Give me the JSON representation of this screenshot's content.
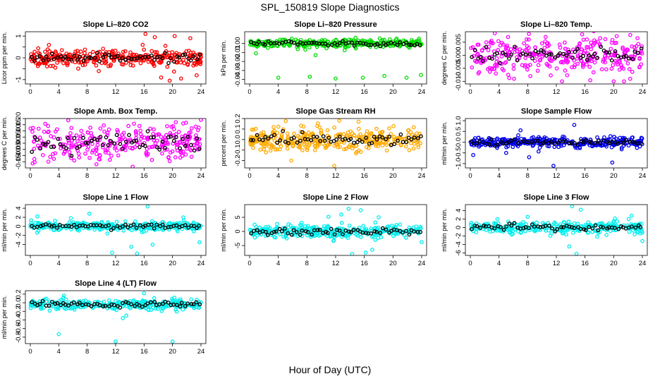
{
  "figure": {
    "title": "SPL_150819  Slope Diagnostics",
    "xlabel": "Hour of Day (UTC)"
  },
  "chart_data": [
    {
      "type": "scatter",
      "title": "Slope Li–820 CO2",
      "ylabel": "Licor ppm per min.",
      "color": "#ff0000",
      "xlim": [
        0,
        24
      ],
      "xticks": [
        0,
        4,
        8,
        12,
        16,
        20,
        24
      ],
      "ylim": [
        -1.2,
        1.2
      ],
      "yticks": [
        -1,
        -0.5,
        0,
        0.5,
        1
      ],
      "ytick_labels": [
        "-1",
        "",
        "0",
        "",
        "1"
      ],
      "center": 0,
      "spread": 0.18,
      "outliers": [
        [
          16.2,
          1.1
        ],
        [
          17.5,
          0.95
        ],
        [
          18.4,
          -0.9
        ],
        [
          19.6,
          -1.05
        ],
        [
          20.3,
          1.0
        ],
        [
          21.2,
          -0.95
        ],
        [
          22.5,
          0.9
        ],
        [
          23.4,
          -0.8
        ],
        [
          15.8,
          0.6
        ],
        [
          19.0,
          0.55
        ]
      ],
      "n_points": 320
    },
    {
      "type": "scatter",
      "title": "Slope Li–820 Pressure",
      "ylabel": "kPa per min.",
      "color": "#00dd00",
      "xlim": [
        0,
        24
      ],
      "xticks": [
        0,
        4,
        8,
        12,
        16,
        20,
        24
      ],
      "ylim": [
        -0.045,
        0.013
      ],
      "yticks": [
        -0.04,
        -0.03,
        -0.02,
        -0.01,
        0
      ],
      "ytick_labels": [
        "-0.04",
        "-0.03",
        "-0.02",
        "-0.01",
        "0.00"
      ],
      "center": 0,
      "spread": 0.0025,
      "outliers": [
        [
          4.0,
          -0.038
        ],
        [
          8.4,
          -0.037
        ],
        [
          12.0,
          -0.039
        ],
        [
          15.8,
          -0.038
        ],
        [
          18.8,
          -0.036
        ],
        [
          21.9,
          -0.038
        ],
        [
          23.9,
          -0.035
        ],
        [
          9.2,
          -0.013
        ],
        [
          0.9,
          -0.011
        ]
      ],
      "n_points": 320
    },
    {
      "type": "scatter",
      "title": "Slope Li–820 Temp.",
      "ylabel": "degrees C per min.",
      "color": "#ff00ff",
      "xlim": [
        0,
        24
      ],
      "xticks": [
        0,
        4,
        8,
        12,
        16,
        20,
        24
      ],
      "ylim": [
        -0.011,
        0.009
      ],
      "yticks": [
        -0.01,
        -0.005,
        0,
        0.005
      ],
      "ytick_labels": [
        "-0.010",
        "-0.005",
        "0.000",
        "0.005"
      ],
      "center": 0,
      "spread": 0.0035,
      "outliers": [
        [
          10.5,
          0.007
        ],
        [
          15.6,
          0.008
        ],
        [
          20.0,
          -0.01
        ],
        [
          12.8,
          -0.01
        ],
        [
          22.3,
          -0.009
        ],
        [
          6.1,
          -0.009
        ]
      ],
      "n_points": 320
    },
    {
      "type": "scatter",
      "title": "Slope Amb. Box Temp.",
      "ylabel": "degrees C per min.",
      "color": "#ff00ff",
      "xlim": [
        0,
        24
      ],
      "xticks": [
        0,
        4,
        8,
        12,
        16,
        20,
        24
      ],
      "ylim": [
        -0.2,
        0.2
      ],
      "yticks": [
        -0.15,
        -0.1,
        -0.05,
        0,
        0.05,
        0.1,
        0.15,
        0.2
      ],
      "ytick_labels": [
        "-0.15",
        "-0.10",
        "-0.05",
        "0.00",
        "0.05",
        "0.10",
        "0.15",
        "0.20"
      ],
      "center": 0,
      "spread": 0.07,
      "outliers": [
        [
          24.0,
          0.19
        ],
        [
          14.4,
          -0.19
        ],
        [
          21.5,
          0.16
        ],
        [
          9.3,
          -0.17
        ]
      ],
      "n_points": 300
    },
    {
      "type": "scatter",
      "title": "Slope Gas Stream RH",
      "ylabel": "percent per min.",
      "color": "#ffaa00",
      "xlim": [
        0,
        24
      ],
      "xticks": [
        0,
        4,
        8,
        12,
        16,
        20,
        24
      ],
      "ylim": [
        -0.27,
        0.2
      ],
      "yticks": [
        -0.2,
        -0.1,
        0,
        0.1,
        0.2
      ],
      "ytick_labels": [
        "-0.2",
        "-0.1",
        "0.0",
        "0.1",
        "0.2"
      ],
      "center": 0,
      "spread": 0.055,
      "outliers": [
        [
          11.8,
          -0.25
        ],
        [
          5.8,
          -0.2
        ],
        [
          12.5,
          0.18
        ],
        [
          15.2,
          0.17
        ]
      ],
      "n_points": 340
    },
    {
      "type": "scatter",
      "title": "Slope Sample Flow",
      "ylabel": "ml/min per min.",
      "color": "#0000ee",
      "xlim": [
        0,
        24
      ],
      "xticks": [
        0,
        4,
        8,
        12,
        16,
        20,
        24
      ],
      "ylim": [
        -1.2,
        1.1
      ],
      "yticks": [
        -1,
        -0.5,
        0,
        0.5,
        1
      ],
      "ytick_labels": [
        "-1.0",
        "-0.5",
        "0.0",
        "0.5",
        "1.0"
      ],
      "center": 0,
      "spread": 0.12,
      "outliers": [
        [
          11.6,
          -1.1
        ],
        [
          19.8,
          -0.95
        ],
        [
          14.5,
          0.8
        ],
        [
          0.4,
          -0.6
        ],
        [
          5.0,
          -0.5
        ],
        [
          8.2,
          -0.7
        ],
        [
          7.0,
          0.55
        ]
      ],
      "n_points": 330
    },
    {
      "type": "scatter",
      "title": "Slope Line 1 Flow",
      "ylabel": "ml/min per min.",
      "color": "#00eeee",
      "xlim": [
        0,
        24
      ],
      "xticks": [
        0,
        4,
        8,
        12,
        16,
        20,
        24
      ],
      "ylim": [
        -6.4,
        4.8
      ],
      "yticks": [
        -4,
        -2,
        0,
        2,
        4
      ],
      "ytick_labels": [
        "-4",
        "-2",
        "0",
        "2",
        "4"
      ],
      "center": 0,
      "spread": 0.5,
      "outliers": [
        [
          16.5,
          4.4
        ],
        [
          14.2,
          -4.5
        ],
        [
          17.2,
          -4.0
        ],
        [
          11.5,
          -5.8
        ],
        [
          15.0,
          -6.0
        ],
        [
          23.8,
          -3.5
        ],
        [
          1.0,
          2.2
        ],
        [
          8.3,
          2.8
        ]
      ],
      "n_points": 300
    },
    {
      "type": "scatter",
      "title": "Slope Line 2 Flow",
      "ylabel": "ml/min per min.",
      "color": "#00eeee",
      "xlim": [
        0,
        24
      ],
      "xticks": [
        0,
        4,
        8,
        12,
        16,
        20,
        24
      ],
      "ylim": [
        -8.5,
        9.5
      ],
      "yticks": [
        -5,
        0,
        5
      ],
      "ytick_labels": [
        "-5",
        "0",
        "5"
      ],
      "center": 0,
      "spread": 1.1,
      "outliers": [
        [
          13.8,
          8.0
        ],
        [
          14.3,
          -8.0
        ],
        [
          15.5,
          7.5
        ],
        [
          16.2,
          -7.5
        ],
        [
          12.8,
          6.0
        ],
        [
          17.1,
          -6.5
        ],
        [
          11.0,
          5.2
        ],
        [
          18.0,
          5.0
        ],
        [
          24.0,
          -3.8
        ]
      ],
      "n_points": 320
    },
    {
      "type": "scatter",
      "title": "Slope Line 3 Flow",
      "ylabel": "ml/min per min.",
      "color": "#00eeee",
      "xlim": [
        0,
        24
      ],
      "xticks": [
        0,
        4,
        8,
        12,
        16,
        20,
        24
      ],
      "ylim": [
        -6.6,
        5.4
      ],
      "yticks": [
        -6,
        -4,
        -2,
        0,
        2,
        4
      ],
      "ytick_labels": [
        "-6",
        "-4",
        "-2",
        "0",
        "2",
        "4"
      ],
      "center": 0,
      "spread": 0.7,
      "outliers": [
        [
          14.2,
          5.0
        ],
        [
          14.8,
          -6.2
        ],
        [
          13.8,
          -4.5
        ],
        [
          15.4,
          4.2
        ],
        [
          22.5,
          2.8
        ],
        [
          24.0,
          -3.2
        ],
        [
          8.0,
          2.5
        ]
      ],
      "n_points": 310
    },
    {
      "type": "scatter",
      "title": "Slope Line 4 (LT) Flow",
      "ylabel": "ml/min per min.",
      "color": "#00eeee",
      "xlim": [
        0,
        24
      ],
      "xticks": [
        0,
        4,
        8,
        12,
        16,
        20,
        24
      ],
      "ylim": [
        -0.95,
        0.28
      ],
      "yticks": [
        -0.8,
        -0.6,
        -0.4,
        -0.2,
        0,
        0.2
      ],
      "ytick_labels": [
        "-0.8",
        "-0.6",
        "-0.4",
        "-0.2",
        "0.0",
        "0.2"
      ],
      "center": -0.04,
      "spread": 0.06,
      "outliers": [
        [
          4.0,
          -0.73
        ],
        [
          12.0,
          -0.9
        ],
        [
          20.0,
          -0.9
        ],
        [
          13.0,
          -0.36
        ],
        [
          13.5,
          -0.3
        ],
        [
          16.0,
          0.22
        ]
      ],
      "n_points": 300
    }
  ]
}
